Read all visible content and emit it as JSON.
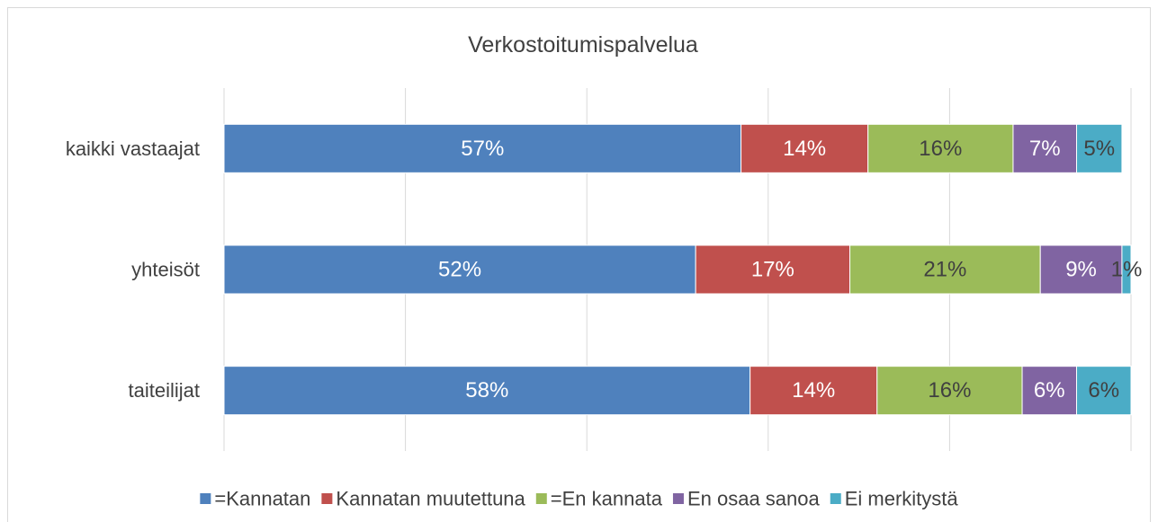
{
  "chart_data": {
    "type": "stacked-bar",
    "orientation": "horizontal",
    "title": "Verkostoitumispalvelua",
    "categories": [
      "kaikki vastaajat",
      "yhteisöt",
      "taiteilijat"
    ],
    "series": [
      {
        "name": "=Kannatan",
        "color": "#4f81bd",
        "label_color": "#ffffff",
        "values": [
          57,
          52,
          58
        ],
        "value_labels": [
          "57%",
          "52%",
          "58%"
        ]
      },
      {
        "name": "Kannatan muutettuna",
        "color": "#c0504d",
        "label_color": "#ffffff",
        "values": [
          14,
          17,
          14
        ],
        "value_labels": [
          "14%",
          "17%",
          "14%"
        ]
      },
      {
        "name": "=En kannata",
        "color": "#9bbb59",
        "label_color": "#404040",
        "values": [
          16,
          21,
          16
        ],
        "value_labels": [
          "16%",
          "21%",
          "16%"
        ]
      },
      {
        "name": "En osaa sanoa",
        "color": "#8064a2",
        "label_color": "#ffffff",
        "values": [
          7,
          9,
          6
        ],
        "value_labels": [
          "7%",
          "9%",
          "6%"
        ]
      },
      {
        "name": "Ei merkitystä",
        "color": "#4bacc6",
        "label_color": "#404040",
        "values": [
          5,
          1,
          6
        ],
        "value_labels": [
          "5%",
          "1%",
          "6%"
        ]
      }
    ],
    "xlim": [
      0,
      100
    ],
    "xticks": [
      0,
      20,
      40,
      60,
      80,
      100
    ],
    "grid": true,
    "legend": "bottom"
  }
}
